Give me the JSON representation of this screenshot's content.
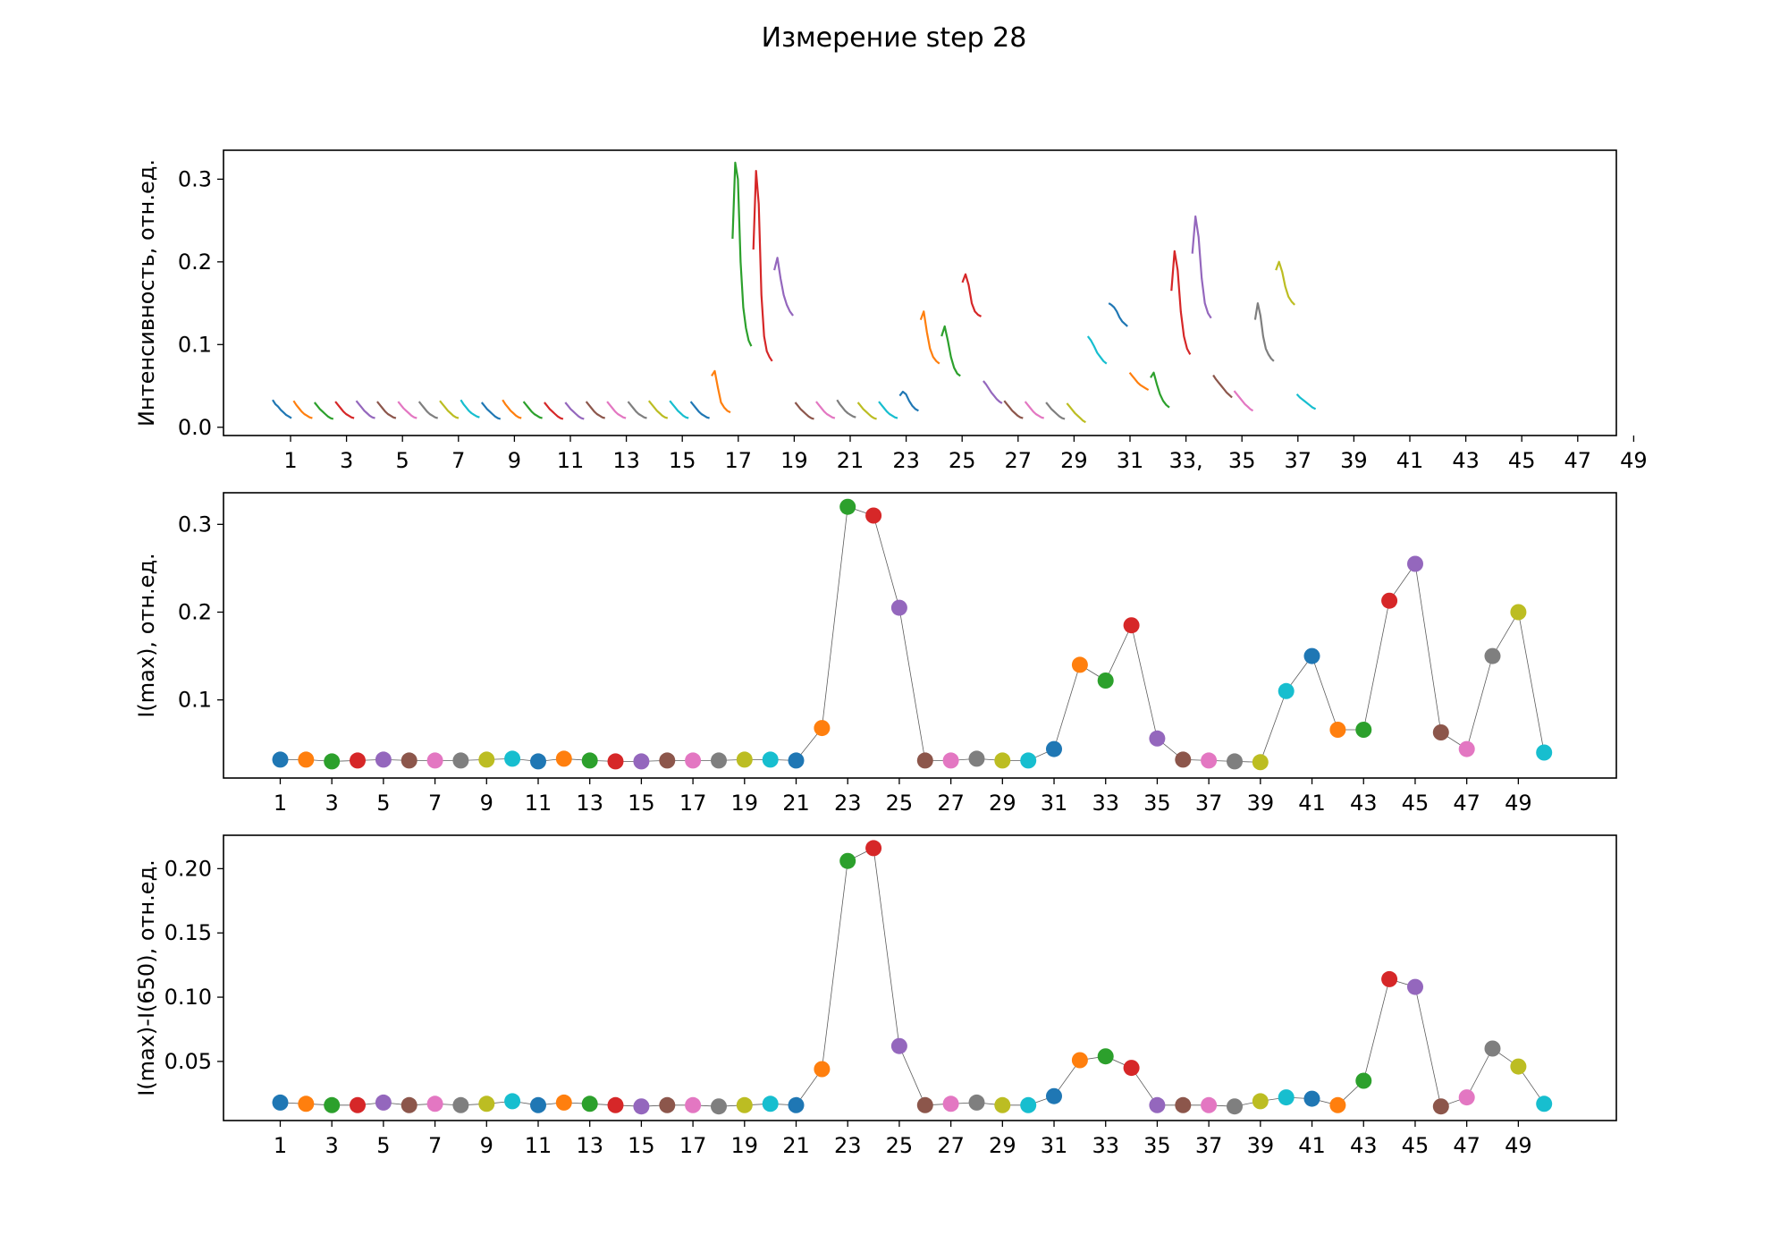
{
  "title": "Измерение step 28",
  "palette": [
    "#1f77b4",
    "#ff7f0e",
    "#2ca02c",
    "#d62728",
    "#9467bd",
    "#8c564b",
    "#e377c2",
    "#7f7f7f",
    "#bcbd22",
    "#17becf"
  ],
  "chart_data": [
    {
      "type": "line",
      "ylabel": "Интенсивность, отн.ед.",
      "ylim": [
        -0.01,
        0.335
      ],
      "yticks": [
        0.0,
        0.1,
        0.2,
        0.3
      ],
      "ytick_labels": [
        "0.0",
        "0.1",
        "0.2",
        "0.3"
      ],
      "xticks": [
        1,
        3,
        5,
        7,
        9,
        11,
        13,
        15,
        17,
        19,
        21,
        23,
        25,
        27,
        29,
        31,
        33,
        35,
        37,
        39,
        41,
        43,
        45,
        47,
        49
      ],
      "xtick_labels": [
        "1",
        "3",
        "5",
        "7",
        "9",
        "11",
        "13",
        "15",
        "17",
        "19",
        "21",
        "23",
        "25",
        "27",
        "29",
        "31",
        "33,",
        "35",
        "37",
        "39",
        "41",
        "43",
        "45",
        "47",
        "49"
      ],
      "series": [
        {
          "segment": 1,
          "values": [
            0.033,
            0.028,
            0.025,
            0.021,
            0.018,
            0.015,
            0.013,
            0.011
          ]
        },
        {
          "segment": 2,
          "values": [
            0.032,
            0.027,
            0.023,
            0.019,
            0.016,
            0.014,
            0.012,
            0.011
          ]
        },
        {
          "segment": 3,
          "values": [
            0.03,
            0.026,
            0.022,
            0.019,
            0.016,
            0.013,
            0.011,
            0.01
          ]
        },
        {
          "segment": 4,
          "values": [
            0.031,
            0.027,
            0.023,
            0.019,
            0.016,
            0.014,
            0.012,
            0.011
          ]
        },
        {
          "segment": 5,
          "values": [
            0.032,
            0.028,
            0.024,
            0.02,
            0.017,
            0.014,
            0.012,
            0.011
          ]
        },
        {
          "segment": 6,
          "values": [
            0.031,
            0.027,
            0.023,
            0.019,
            0.016,
            0.014,
            0.012,
            0.011
          ]
        },
        {
          "segment": 7,
          "values": [
            0.031,
            0.027,
            0.023,
            0.02,
            0.017,
            0.014,
            0.012,
            0.011
          ]
        },
        {
          "segment": 8,
          "values": [
            0.031,
            0.027,
            0.023,
            0.019,
            0.016,
            0.014,
            0.012,
            0.011
          ]
        },
        {
          "segment": 9,
          "values": [
            0.032,
            0.028,
            0.024,
            0.02,
            0.017,
            0.014,
            0.012,
            0.011
          ]
        },
        {
          "segment": 10,
          "values": [
            0.033,
            0.028,
            0.024,
            0.02,
            0.017,
            0.015,
            0.013,
            0.012
          ]
        },
        {
          "segment": 11,
          "values": [
            0.03,
            0.026,
            0.022,
            0.019,
            0.016,
            0.013,
            0.011,
            0.01
          ]
        },
        {
          "segment": 12,
          "values": [
            0.033,
            0.028,
            0.024,
            0.02,
            0.017,
            0.014,
            0.012,
            0.011
          ]
        },
        {
          "segment": 13,
          "values": [
            0.031,
            0.027,
            0.023,
            0.019,
            0.016,
            0.014,
            0.012,
            0.011
          ]
        },
        {
          "segment": 14,
          "values": [
            0.03,
            0.026,
            0.022,
            0.019,
            0.016,
            0.013,
            0.011,
            0.01
          ]
        },
        {
          "segment": 15,
          "values": [
            0.03,
            0.026,
            0.022,
            0.019,
            0.016,
            0.013,
            0.011,
            0.01
          ]
        },
        {
          "segment": 16,
          "values": [
            0.031,
            0.027,
            0.023,
            0.019,
            0.016,
            0.014,
            0.012,
            0.011
          ]
        },
        {
          "segment": 17,
          "values": [
            0.031,
            0.027,
            0.023,
            0.019,
            0.016,
            0.014,
            0.012,
            0.011
          ]
        },
        {
          "segment": 18,
          "values": [
            0.031,
            0.027,
            0.023,
            0.019,
            0.016,
            0.014,
            0.012,
            0.011
          ]
        },
        {
          "segment": 19,
          "values": [
            0.032,
            0.028,
            0.024,
            0.02,
            0.017,
            0.014,
            0.012,
            0.011
          ]
        },
        {
          "segment": 20,
          "values": [
            0.032,
            0.028,
            0.024,
            0.02,
            0.017,
            0.014,
            0.012,
            0.011
          ]
        },
        {
          "segment": 21,
          "values": [
            0.031,
            0.027,
            0.023,
            0.019,
            0.016,
            0.014,
            0.012,
            0.011
          ]
        },
        {
          "segment": 22,
          "values": [
            0.062,
            0.068,
            0.048,
            0.03,
            0.024,
            0.02,
            0.018
          ]
        },
        {
          "segment": 23,
          "values": [
            0.228,
            0.32,
            0.3,
            0.2,
            0.145,
            0.12,
            0.105,
            0.098
          ]
        },
        {
          "segment": 24,
          "values": [
            0.215,
            0.31,
            0.27,
            0.16,
            0.11,
            0.092,
            0.085,
            0.08
          ]
        },
        {
          "segment": 25,
          "values": [
            0.19,
            0.205,
            0.18,
            0.16,
            0.148,
            0.14,
            0.135
          ]
        },
        {
          "segment": 26,
          "values": [
            0.03,
            0.026,
            0.022,
            0.019,
            0.016,
            0.013,
            0.011,
            0.01
          ]
        },
        {
          "segment": 27,
          "values": [
            0.031,
            0.027,
            0.023,
            0.019,
            0.016,
            0.014,
            0.012,
            0.011
          ]
        },
        {
          "segment": 28,
          "values": [
            0.033,
            0.028,
            0.024,
            0.02,
            0.017,
            0.015,
            0.013,
            0.012
          ]
        },
        {
          "segment": 29,
          "values": [
            0.03,
            0.026,
            0.022,
            0.019,
            0.016,
            0.013,
            0.011,
            0.01
          ]
        },
        {
          "segment": 30,
          "values": [
            0.031,
            0.027,
            0.023,
            0.019,
            0.016,
            0.014,
            0.012,
            0.011
          ]
        },
        {
          "segment": 31,
          "values": [
            0.038,
            0.043,
            0.04,
            0.032,
            0.026,
            0.022,
            0.02
          ]
        },
        {
          "segment": 32,
          "values": [
            0.13,
            0.14,
            0.115,
            0.095,
            0.085,
            0.08,
            0.077
          ]
        },
        {
          "segment": 33,
          "values": [
            0.11,
            0.122,
            0.105,
            0.085,
            0.072,
            0.065,
            0.062
          ]
        },
        {
          "segment": 34,
          "values": [
            0.175,
            0.185,
            0.172,
            0.15,
            0.14,
            0.136,
            0.134
          ]
        },
        {
          "segment": 35,
          "values": [
            0.056,
            0.052,
            0.047,
            0.042,
            0.038,
            0.034,
            0.031,
            0.029
          ]
        },
        {
          "segment": 36,
          "values": [
            0.032,
            0.028,
            0.024,
            0.02,
            0.017,
            0.014,
            0.012,
            0.011
          ]
        },
        {
          "segment": 37,
          "values": [
            0.031,
            0.027,
            0.023,
            0.019,
            0.016,
            0.014,
            0.012,
            0.011
          ]
        },
        {
          "segment": 38,
          "values": [
            0.03,
            0.026,
            0.022,
            0.019,
            0.016,
            0.013,
            0.011,
            0.01
          ]
        },
        {
          "segment": 39,
          "values": [
            0.029,
            0.025,
            0.021,
            0.017,
            0.014,
            0.011,
            0.008,
            0.006
          ]
        },
        {
          "segment": 40,
          "values": [
            0.11,
            0.105,
            0.098,
            0.09,
            0.085,
            0.08,
            0.077
          ]
        },
        {
          "segment": 41,
          "values": [
            0.15,
            0.148,
            0.145,
            0.14,
            0.133,
            0.128,
            0.125,
            0.122
          ]
        },
        {
          "segment": 42,
          "values": [
            0.066,
            0.062,
            0.058,
            0.054,
            0.051,
            0.049,
            0.047,
            0.045
          ]
        },
        {
          "segment": 43,
          "values": [
            0.06,
            0.066,
            0.052,
            0.04,
            0.032,
            0.027,
            0.024
          ]
        },
        {
          "segment": 44,
          "values": [
            0.165,
            0.213,
            0.19,
            0.14,
            0.11,
            0.095,
            0.088
          ]
        },
        {
          "segment": 45,
          "values": [
            0.21,
            0.255,
            0.23,
            0.18,
            0.15,
            0.138,
            0.132
          ]
        },
        {
          "segment": 46,
          "values": [
            0.063,
            0.058,
            0.054,
            0.05,
            0.046,
            0.042,
            0.039,
            0.036
          ]
        },
        {
          "segment": 47,
          "values": [
            0.044,
            0.04,
            0.036,
            0.032,
            0.028,
            0.025,
            0.022,
            0.02
          ]
        },
        {
          "segment": 48,
          "values": [
            0.13,
            0.15,
            0.135,
            0.11,
            0.095,
            0.088,
            0.083,
            0.08
          ]
        },
        {
          "segment": 49,
          "values": [
            0.19,
            0.2,
            0.188,
            0.17,
            0.158,
            0.152,
            0.148
          ]
        },
        {
          "segment": 50,
          "values": [
            0.04,
            0.036,
            0.033,
            0.03,
            0.027,
            0.024,
            0.022
          ]
        }
      ]
    },
    {
      "type": "scatter",
      "ylabel": "I(max), отн.ед.",
      "ylim": [
        0.011,
        0.336
      ],
      "yticks": [
        0.1,
        0.2,
        0.3
      ],
      "ytick_labels": [
        "0.1",
        "0.2",
        "0.3"
      ],
      "xlim": [
        -1.2,
        52.8
      ],
      "xticks": [
        1,
        3,
        5,
        7,
        9,
        11,
        13,
        15,
        17,
        19,
        21,
        23,
        25,
        27,
        29,
        31,
        33,
        35,
        37,
        39,
        41,
        43,
        45,
        47,
        49
      ],
      "xtick_labels": [
        "1",
        "3",
        "5",
        "7",
        "9",
        "11",
        "13",
        "15",
        "17",
        "19",
        "21",
        "23",
        "25",
        "27",
        "29",
        "31",
        "33",
        "35",
        "37",
        "39",
        "41",
        "43",
        "45",
        "47",
        "49"
      ],
      "x": [
        1,
        2,
        3,
        4,
        5,
        6,
        7,
        8,
        9,
        10,
        11,
        12,
        13,
        14,
        15,
        16,
        17,
        18,
        19,
        20,
        21,
        22,
        23,
        24,
        25,
        26,
        27,
        28,
        29,
        30,
        31,
        32,
        33,
        34,
        35,
        36,
        37,
        38,
        39,
        40,
        41,
        42,
        43,
        44,
        45,
        46,
        47,
        48,
        49,
        50
      ],
      "y": [
        0.032,
        0.032,
        0.03,
        0.031,
        0.032,
        0.031,
        0.031,
        0.031,
        0.032,
        0.033,
        0.03,
        0.033,
        0.031,
        0.03,
        0.03,
        0.031,
        0.031,
        0.031,
        0.032,
        0.032,
        0.031,
        0.068,
        0.32,
        0.31,
        0.205,
        0.031,
        0.031,
        0.033,
        0.031,
        0.031,
        0.044,
        0.14,
        0.122,
        0.185,
        0.056,
        0.032,
        0.031,
        0.03,
        0.029,
        0.11,
        0.15,
        0.066,
        0.066,
        0.213,
        0.255,
        0.063,
        0.044,
        0.15,
        0.2,
        0.04
      ]
    },
    {
      "type": "scatter",
      "ylabel": "I(max)-I(650), отн.ед.",
      "ylim": [
        0.004,
        0.226
      ],
      "yticks": [
        0.05,
        0.1,
        0.15,
        0.2
      ],
      "ytick_labels": [
        "0.05",
        "0.10",
        "0.15",
        "0.20"
      ],
      "xlim": [
        -1.2,
        52.8
      ],
      "xticks": [
        1,
        3,
        5,
        7,
        9,
        11,
        13,
        15,
        17,
        19,
        21,
        23,
        25,
        27,
        29,
        31,
        33,
        35,
        37,
        39,
        41,
        43,
        45,
        47,
        49
      ],
      "xtick_labels": [
        "1",
        "3",
        "5",
        "7",
        "9",
        "11",
        "13",
        "15",
        "17",
        "19",
        "21",
        "23",
        "25",
        "27",
        "29",
        "31",
        "33",
        "35",
        "37",
        "39",
        "41",
        "43",
        "45",
        "47",
        "49"
      ],
      "x": [
        1,
        2,
        3,
        4,
        5,
        6,
        7,
        8,
        9,
        10,
        11,
        12,
        13,
        14,
        15,
        16,
        17,
        18,
        19,
        20,
        21,
        22,
        23,
        24,
        25,
        26,
        27,
        28,
        29,
        30,
        31,
        32,
        33,
        34,
        35,
        36,
        37,
        38,
        39,
        40,
        41,
        42,
        43,
        44,
        45,
        46,
        47,
        48,
        49,
        50
      ],
      "y": [
        0.018,
        0.017,
        0.016,
        0.016,
        0.018,
        0.016,
        0.017,
        0.016,
        0.017,
        0.019,
        0.016,
        0.018,
        0.017,
        0.016,
        0.015,
        0.016,
        0.016,
        0.015,
        0.016,
        0.017,
        0.016,
        0.044,
        0.206,
        0.216,
        0.062,
        0.016,
        0.017,
        0.018,
        0.016,
        0.016,
        0.023,
        0.051,
        0.054,
        0.045,
        0.016,
        0.016,
        0.016,
        0.015,
        0.019,
        0.022,
        0.021,
        0.016,
        0.035,
        0.114,
        0.108,
        0.015,
        0.022,
        0.06,
        0.046,
        0.017
      ]
    }
  ]
}
